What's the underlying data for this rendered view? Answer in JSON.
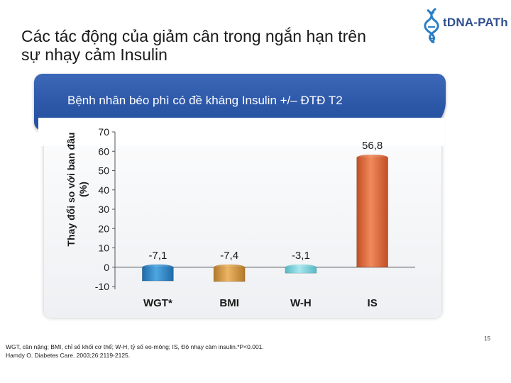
{
  "slide": {
    "title_line1": "Các tác động của giảm cân trong ngắn hạn trên",
    "title_line2": "sự nhạy cảm Insulin",
    "logo_text": "tDNA-PATh",
    "page_number": "15",
    "footnote_line1": "WGT, cân nặng; BMI, chỉ số khối cơ thể; W-H, tỷ số eo-mông; IS, Độ nhạy cảm insulin.*P<0.001.",
    "footnote_line2": "Hamdy O. Diabetes Care. 2003;26:2119-2125."
  },
  "colors": {
    "banner": "#2b56a6",
    "bar_wgt": "#2f86c8",
    "bar_bmi": "#d2983c",
    "bar_wh": "#7fd3dc",
    "bar_is": "#e0683c"
  },
  "chart_data": {
    "type": "bar",
    "title": "Bệnh nhân béo phì có đề kháng Insulin +/– ĐTĐ T2",
    "ylabel_line1": "Thay đổi so với ban đầu",
    "ylabel_line2": "(%)",
    "xlabel": "",
    "categories": [
      "WGT*",
      "BMI",
      "W-H",
      "IS"
    ],
    "values": [
      -7.1,
      -7.4,
      -3.1,
      56.8
    ],
    "value_labels": [
      "-7,1",
      "-7,4",
      "-3,1",
      "56,8"
    ],
    "ylim": [
      -10,
      70
    ],
    "yticks": [
      -10,
      0,
      10,
      20,
      30,
      40,
      50,
      60,
      70
    ],
    "grid": false,
    "legend": "none"
  }
}
